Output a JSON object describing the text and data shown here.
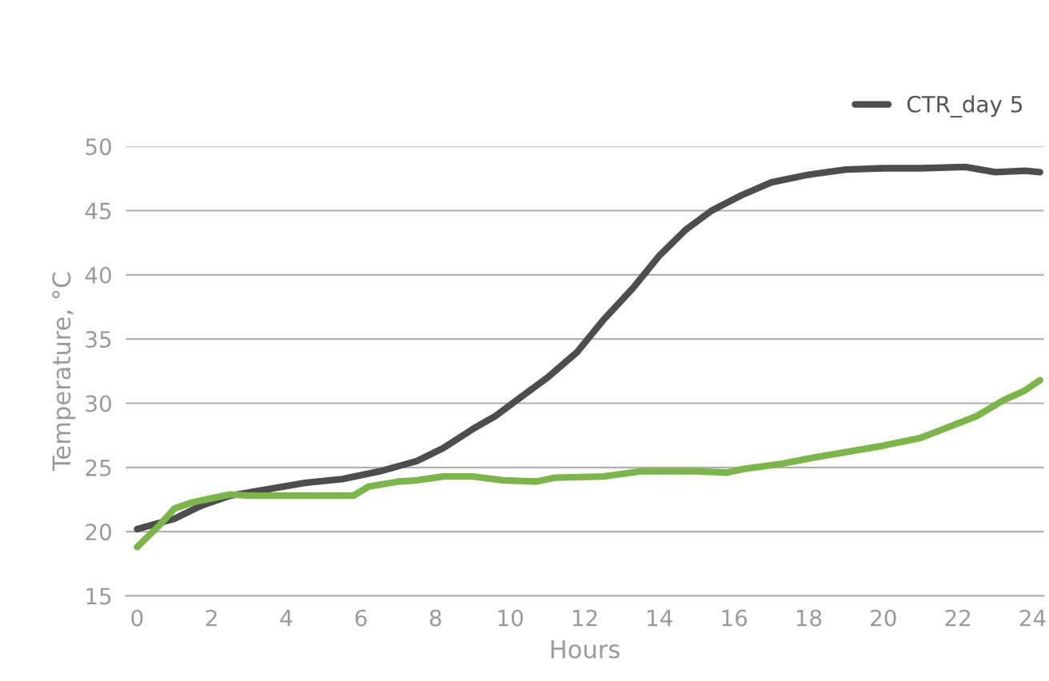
{
  "chart_data": {
    "type": "line",
    "xlabel": "Hours",
    "ylabel": "Temperature, °C",
    "xlim": [
      -0.3,
      24.3
    ],
    "xticks": [
      0,
      2,
      4,
      6,
      8,
      10,
      12,
      14,
      16,
      18,
      20,
      22,
      24
    ],
    "ylim": [
      15,
      50
    ],
    "yticks": [
      15,
      20,
      25,
      30,
      35,
      40,
      45,
      50
    ],
    "grid": "y",
    "legend": "top right",
    "marker": "none",
    "line_style": "solid",
    "series": [
      {
        "name": "CTR_day 5",
        "color": "#4d4d4f",
        "x": [
          0,
          1,
          1.7,
          2.5,
          3.5,
          4.5,
          5.5,
          6.5,
          7.5,
          8.2,
          9,
          9.6,
          10.3,
          11,
          11.8,
          12.5,
          13.3,
          14,
          14.7,
          15.4,
          16.2,
          17,
          18,
          19,
          20,
          21,
          22.2,
          23,
          23.8,
          24.2
        ],
        "values": [
          20.2,
          21,
          22,
          22.8,
          23.3,
          23.8,
          24.1,
          24.7,
          25.5,
          26.5,
          28,
          29,
          30.5,
          32,
          34,
          36.5,
          39,
          41.5,
          43.5,
          45,
          46.2,
          47.2,
          47.8,
          48.2,
          48.3,
          48.3,
          48.4,
          48,
          48.1,
          48
        ]
      },
      {
        "color": "#7ab648",
        "x": [
          0,
          0.6,
          1,
          1.5,
          2,
          2.5,
          3,
          5.5,
          5.8,
          6.2,
          7,
          7.5,
          8.2,
          9,
          9.8,
          10.7,
          11.2,
          12.5,
          13.5,
          15,
          15.8,
          16.3,
          17.3,
          18,
          19,
          20,
          21,
          21.8,
          22.5,
          23.2,
          23.8,
          24.2
        ],
        "values": [
          18.8,
          20.5,
          21.8,
          22.3,
          22.6,
          22.9,
          22.8,
          22.8,
          22.8,
          23.5,
          23.9,
          24,
          24.3,
          24.3,
          24,
          23.9,
          24.2,
          24.3,
          24.7,
          24.7,
          24.6,
          24.9,
          25.3,
          25.7,
          26.2,
          26.7,
          27.3,
          28.2,
          29,
          30.2,
          31,
          31.8
        ]
      }
    ]
  }
}
